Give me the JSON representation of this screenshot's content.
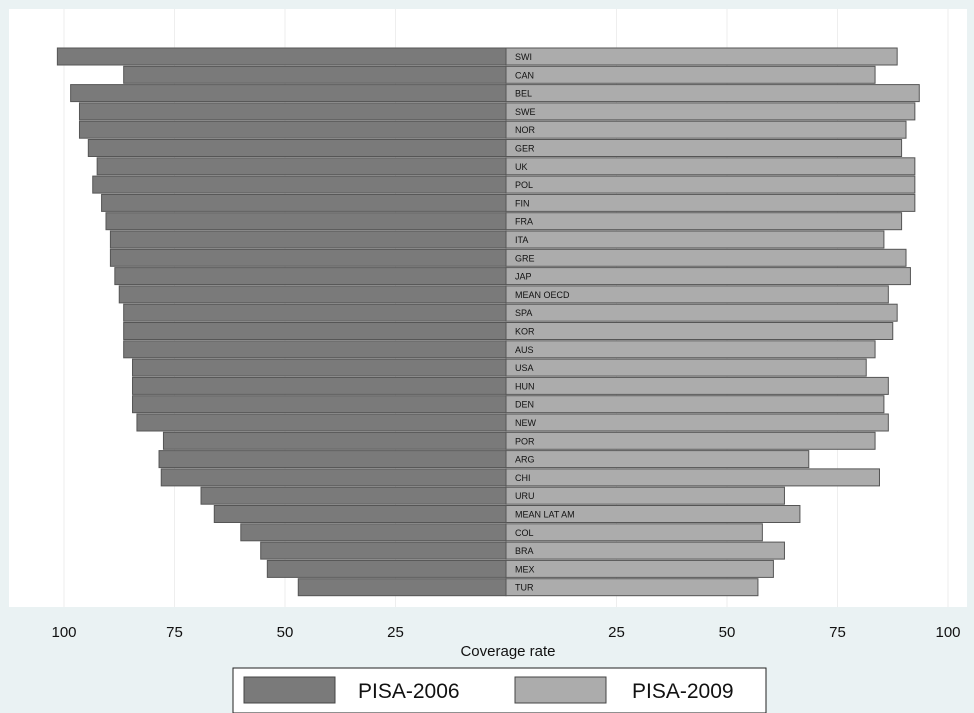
{
  "chart_data": {
    "type": "bar",
    "orientation": "horizontal-butterfly",
    "title": "",
    "xlabel": "Coverage rate",
    "ylabel": "",
    "xlim": [
      0,
      100
    ],
    "xticks": [
      0,
      25,
      50,
      75,
      100
    ],
    "xtick_labels_left": [
      "100",
      "75",
      "50",
      "25"
    ],
    "xtick_labels_right": [
      "25",
      "50",
      "75",
      "100"
    ],
    "grid": true,
    "legend_position": "bottom",
    "categories": [
      "SWI",
      "CAN",
      "BEL",
      "SWE",
      "NOR",
      "GER",
      "UK",
      "POL",
      "FIN",
      "FRA",
      "ITA",
      "GRE",
      "JAP",
      "MEAN OECD",
      "SPA",
      "KOR",
      "AUS",
      "USA",
      "HUN",
      "DEN",
      "NEW",
      "POR",
      "ARG",
      "CHI",
      "URU",
      "MEAN LAT AM",
      "COL",
      "BRA",
      "MEX",
      "TUR"
    ],
    "series": [
      {
        "name": "PISA-2006",
        "side": "left",
        "color": "#7a7a7a",
        "values": [
          101.5,
          86.5,
          98.5,
          96.5,
          96.5,
          94.5,
          92.5,
          93.5,
          91.5,
          90.5,
          89.5,
          89.5,
          88.5,
          87.5,
          86.5,
          86.5,
          86.5,
          84.5,
          84.5,
          84.5,
          83.5,
          77.5,
          78.5,
          78,
          69,
          66,
          60,
          55.5,
          54,
          47
        ]
      },
      {
        "name": "PISA-2009",
        "side": "right",
        "color": "#acacac",
        "values": [
          88.5,
          83.5,
          93.5,
          92.5,
          90.5,
          89.5,
          92.5,
          92.5,
          92.5,
          89.5,
          85.5,
          90.5,
          91.5,
          86.5,
          88.5,
          87.5,
          83.5,
          81.5,
          86.5,
          85.5,
          86.5,
          83.5,
          68.5,
          84.5,
          63,
          66.5,
          58,
          63,
          60.5,
          57
        ]
      }
    ]
  },
  "colors": {
    "background": "#eaf2f3",
    "plot_background": "#ffffff",
    "grid": "#eeeeee",
    "bar_outline": "#555555"
  }
}
